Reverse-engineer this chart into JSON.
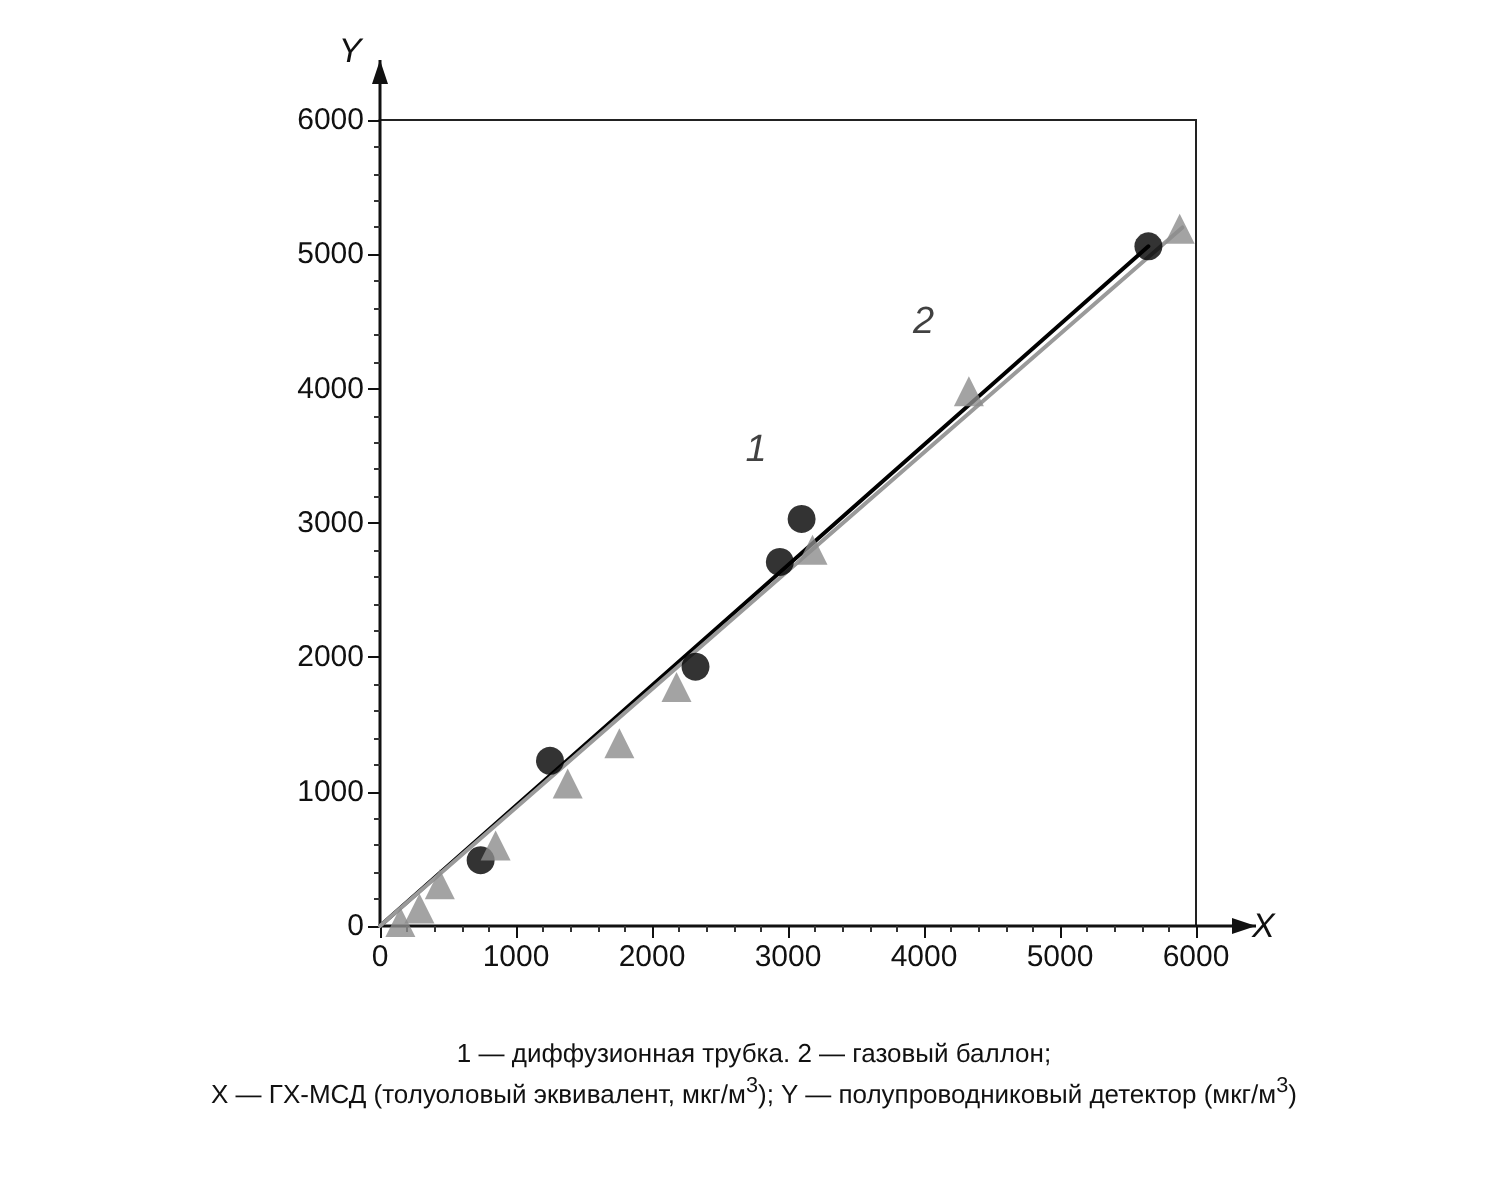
{
  "chart_data": {
    "type": "scatter",
    "xlabel": "X",
    "ylabel": "Y",
    "xlim": [
      0,
      6000
    ],
    "ylim": [
      0,
      6000
    ],
    "xticks": [
      0,
      1000,
      2000,
      3000,
      4000,
      5000,
      6000
    ],
    "yticks": [
      0,
      1000,
      2000,
      3000,
      4000,
      5000,
      6000
    ],
    "grid": false,
    "series": [
      {
        "type": "scatter",
        "marker": "circle",
        "color": "#000000",
        "x": [
          740,
          1250,
          2320,
          2940,
          3100,
          5650
        ],
        "values": [
          490,
          1230,
          1930,
          2710,
          3030,
          5060
        ]
      },
      {
        "type": "scatter",
        "marker": "triangle",
        "color": "#8c8c8c",
        "x": [
          150,
          290,
          440,
          850,
          1380,
          1760,
          2180,
          3180,
          4330,
          5880
        ],
        "values": [
          30,
          130,
          310,
          600,
          1060,
          1360,
          1780,
          2800,
          3980,
          5190
        ]
      },
      {
        "type": "line",
        "marker": "none",
        "color": "#000000",
        "x": [
          0,
          5650
        ],
        "values": [
          0,
          5060
        ]
      },
      {
        "type": "line",
        "marker": "none",
        "color": "#9a9a9a",
        "x": [
          0,
          5900
        ],
        "values": [
          0,
          5200
        ]
      }
    ],
    "annotations": [
      {
        "text": "1",
        "x": 3100,
        "y": 3030
      },
      {
        "text": "2",
        "x": 4330,
        "y": 3980
      },
      "1 — диффузионная трубка. 2 — газовый баллон;",
      "X — ГХ-МСД (толуоловый эквивалент, мкг/м$^{3}$); Y — полупроводниковый детектор (мкг/м$^{3}$)"
    ]
  }
}
